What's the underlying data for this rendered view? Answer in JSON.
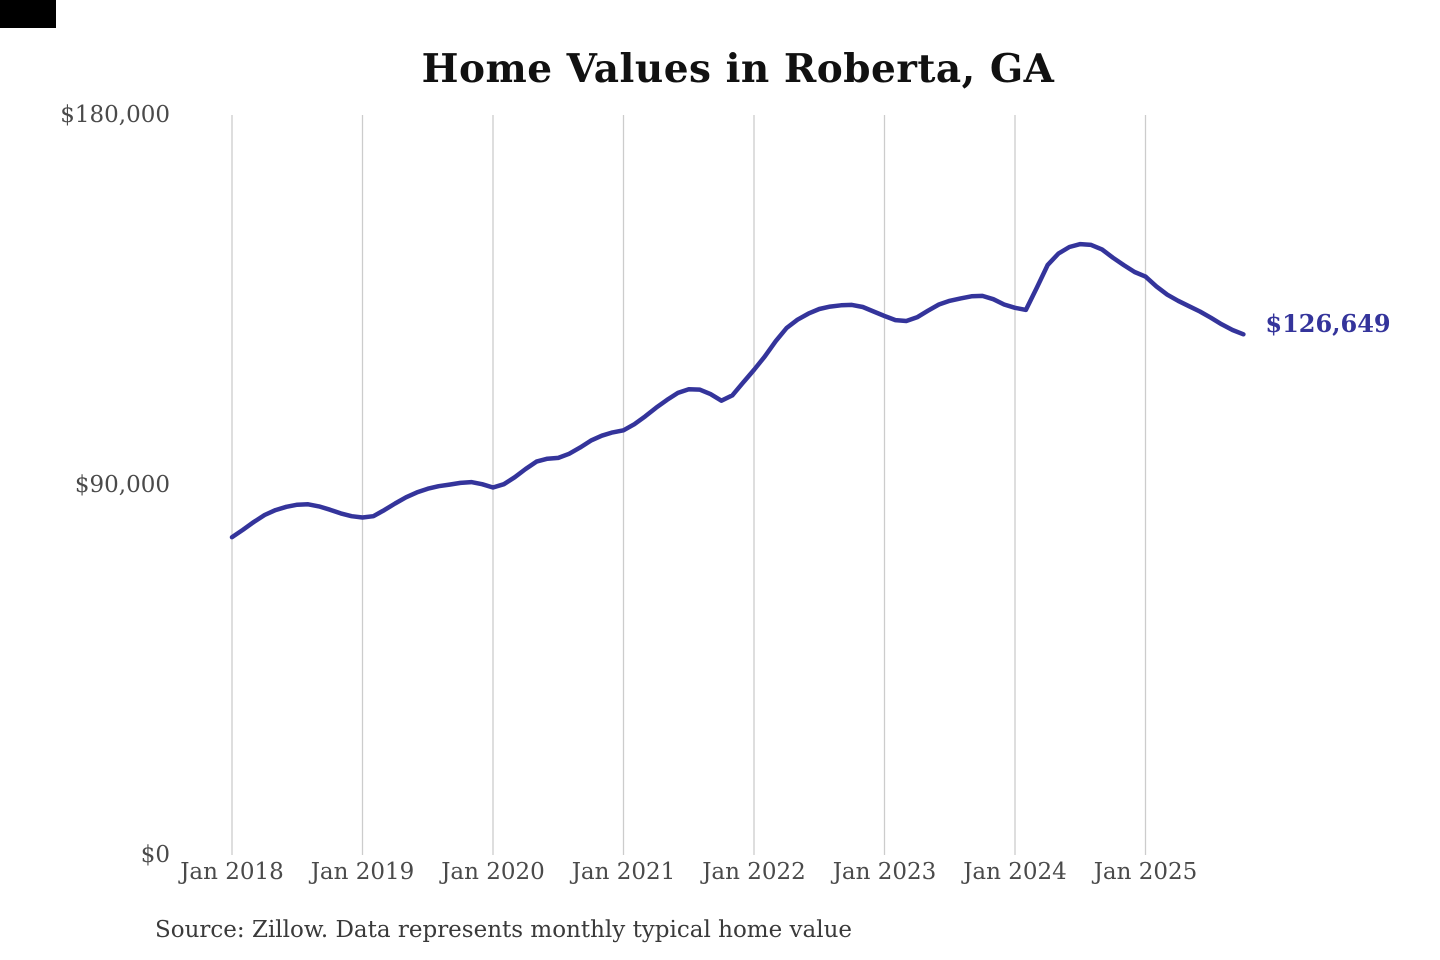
{
  "page": {
    "title": "Home Values in Roberta, GA",
    "source_note": "Source: Zillow. Data represents monthly typical home value"
  },
  "colors": {
    "background": "#ffffff",
    "line": "#34349b",
    "end_label": "#34349b",
    "axis_text": "#4a4a4a",
    "gridline": "#cccccc",
    "title_text": "#111111",
    "corner_mark": "#000000"
  },
  "chart_data": {
    "type": "line",
    "title": "Home Values in Roberta, GA",
    "series_name": "Monthly typical home value",
    "unit": "USD",
    "x_start": "2018-01",
    "x_end": "2025-10",
    "months_per_tick": 12,
    "x_tick_labels": [
      "Jan 2018",
      "Jan 2019",
      "Jan 2020",
      "Jan 2021",
      "Jan 2022",
      "Jan 2023",
      "Jan 2024",
      "Jan 2025"
    ],
    "y_ticks": [
      0,
      90000,
      180000
    ],
    "y_tick_labels": [
      "$0",
      "$90,000",
      "$180,000"
    ],
    "ylim": [
      0,
      180000
    ],
    "grid": "vertical-only",
    "legend": "none",
    "end_label": "$126,649",
    "end_value": 126649,
    "source_note": "Source: Zillow. Data represents monthly typical home value",
    "values": [
      77300,
      79100,
      81000,
      82700,
      83900,
      84700,
      85200,
      85300,
      84800,
      84000,
      83100,
      82400,
      82100,
      82400,
      83900,
      85500,
      87000,
      88200,
      89100,
      89700,
      90100,
      90500,
      90700,
      90200,
      89400,
      90200,
      91900,
      93900,
      95700,
      96400,
      96600,
      97600,
      99100,
      100800,
      102000,
      102800,
      103300,
      104800,
      106700,
      108800,
      110700,
      112400,
      113300,
      113200,
      112100,
      110500,
      111800,
      114900,
      118000,
      121300,
      125000,
      128200,
      130200,
      131700,
      132800,
      133400,
      133700,
      133800,
      133300,
      132200,
      131100,
      130100,
      129900,
      130800,
      132400,
      133900,
      134800,
      135400,
      135900,
      136000,
      135200,
      133900,
      133100,
      132600,
      138000,
      143500,
      146300,
      147900,
      148600,
      148400,
      147300,
      145300,
      143500,
      141800,
      140700,
      138300,
      136300,
      134800,
      133500,
      132200,
      130700,
      129100,
      127700,
      126649
    ]
  }
}
